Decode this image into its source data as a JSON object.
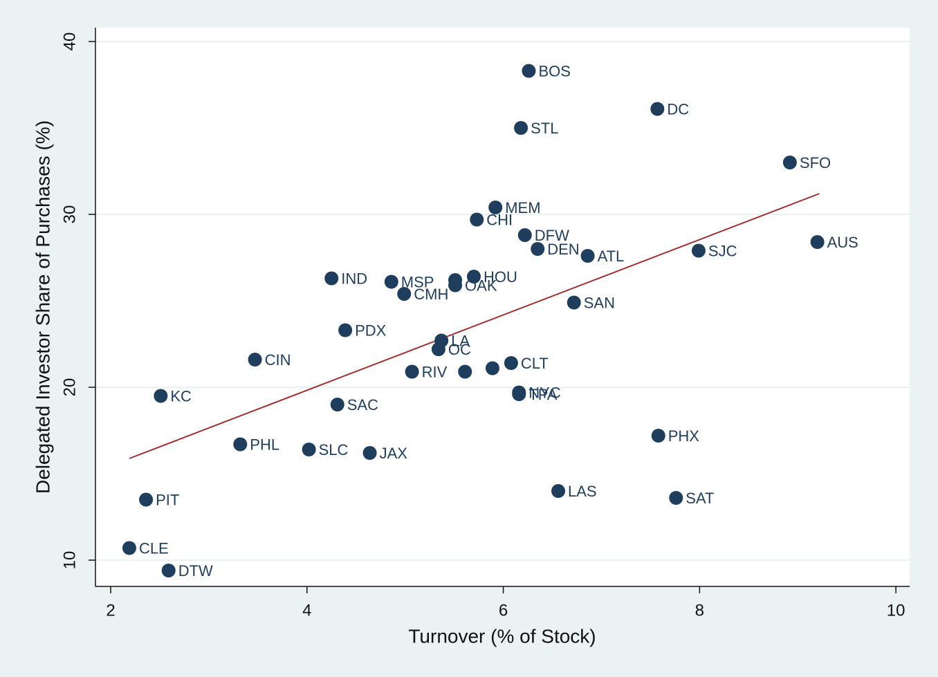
{
  "chart_data": {
    "type": "scatter",
    "x_label": "Turnover (% of Stock)",
    "y_label": "Delegated Investor Share of Purchases (%)",
    "labels": [
      "BOS",
      "DC",
      "STL",
      "SFO",
      "MEM",
      "CHI",
      "DFW",
      "DEN",
      "ATL",
      "SJC",
      "AUS",
      "HOU",
      "IND",
      "MSP",
      null,
      "OAK",
      "CMH",
      "SAN",
      "PDX",
      "LA",
      "OC",
      "CIN",
      "CLT",
      "RIV",
      null,
      null,
      "NYC",
      "TPA",
      "KC",
      "SAC",
      "PHX",
      "PHL",
      "SLC",
      "JAX",
      "LAS",
      "SAT",
      "PIT",
      "CLE",
      "DTW"
    ],
    "x": [
      6.26,
      7.57,
      6.18,
      8.92,
      5.92,
      5.73,
      6.22,
      6.35,
      6.86,
      7.99,
      9.2,
      5.7,
      4.25,
      4.86,
      5.51,
      5.51,
      4.99,
      6.72,
      4.39,
      5.37,
      5.34,
      3.47,
      6.08,
      5.07,
      5.61,
      5.89,
      6.16,
      6.16,
      2.51,
      4.31,
      7.58,
      3.32,
      4.02,
      4.64,
      6.56,
      7.76,
      2.36,
      2.19,
      2.59
    ],
    "y": [
      38.3,
      36.1,
      35.0,
      33.0,
      30.4,
      29.7,
      28.8,
      28.0,
      27.6,
      27.9,
      28.4,
      26.4,
      26.3,
      26.1,
      26.2,
      25.9,
      25.4,
      24.9,
      23.3,
      22.7,
      22.2,
      21.6,
      21.4,
      20.9,
      20.9,
      21.1,
      19.7,
      19.6,
      19.5,
      19.0,
      17.2,
      16.7,
      16.4,
      16.2,
      14.0,
      13.6,
      13.5,
      10.7,
      9.4
    ],
    "color": "#1f3d5c",
    "fit_line": {
      "x": [
        2.19,
        9.22
      ],
      "y": [
        15.88,
        31.2
      ],
      "color": "#a03030"
    },
    "xlim": [
      1.845,
      10.14
    ],
    "ylim": [
      8.48,
      40.8
    ],
    "xticks": [
      2,
      4,
      6,
      8,
      10
    ],
    "yticks": [
      10,
      20,
      30,
      40
    ],
    "grid": true
  }
}
